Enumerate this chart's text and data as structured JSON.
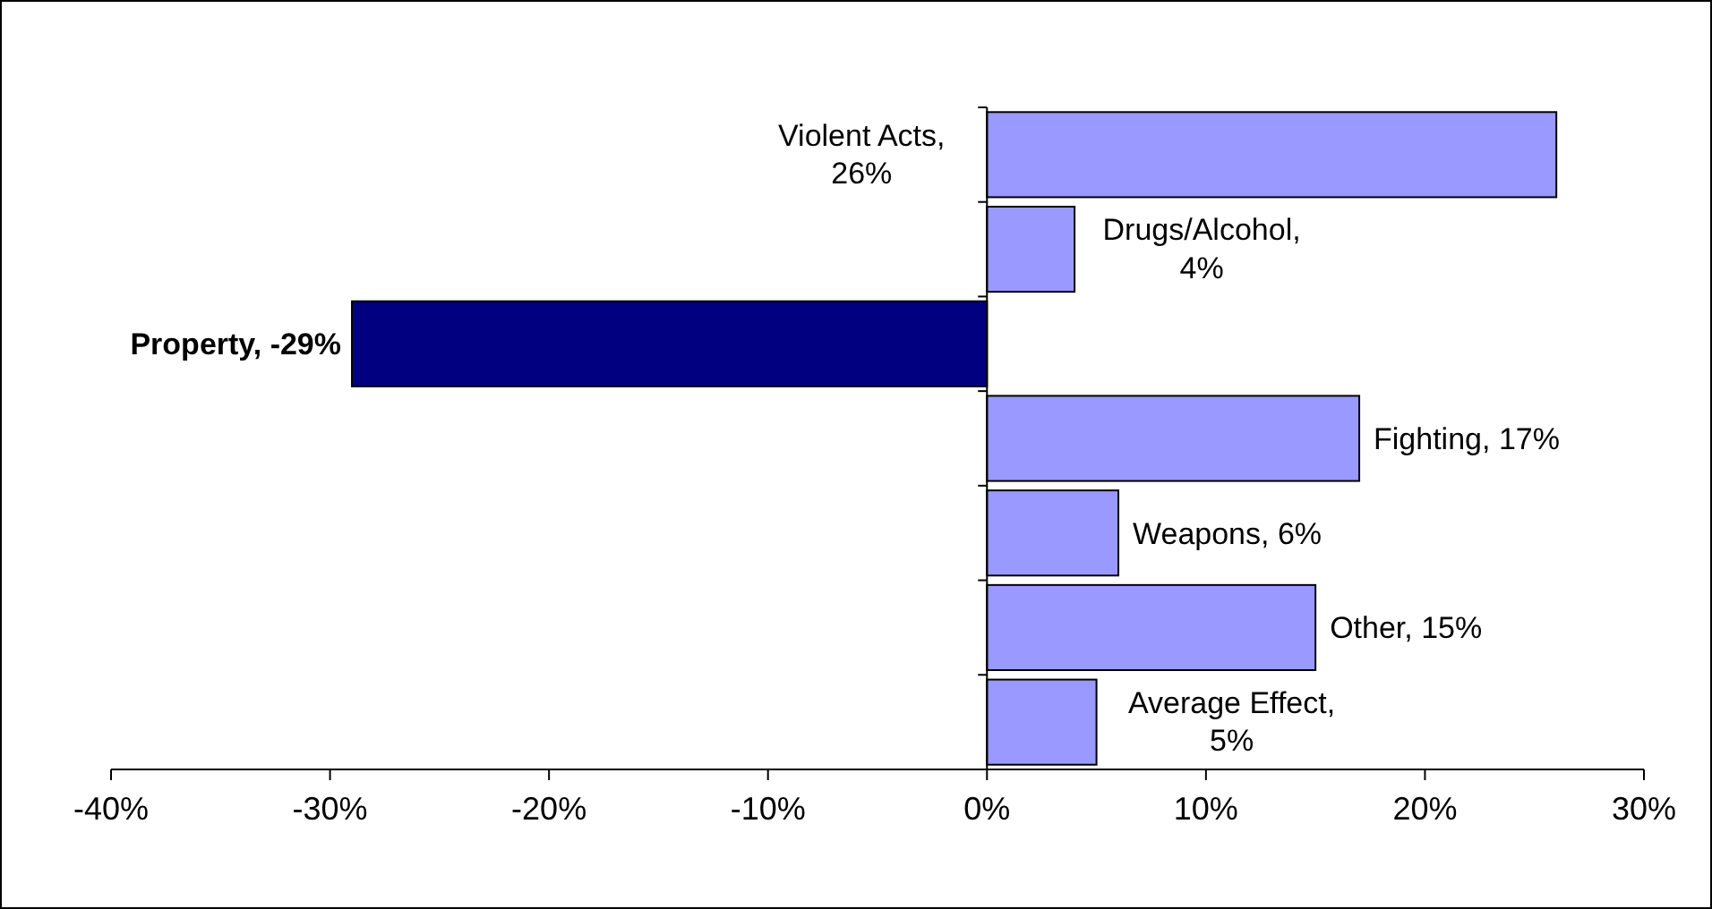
{
  "chart_data": {
    "type": "bar",
    "orientation": "horizontal",
    "categories": [
      null,
      null,
      null,
      null,
      null,
      null,
      null
    ],
    "values": [
      26,
      4,
      -29,
      17,
      6,
      15,
      5
    ],
    "colors": [
      "#9999ff",
      "#9999ff",
      "#000080",
      "#9999ff",
      "#9999ff",
      "#9999ff",
      "#9999ff"
    ],
    "value_labels": [
      "Violent Acts, 26%",
      "Drugs/Alcohol, 4%",
      "Property, -29%",
      "Fighting, 17%",
      "Weapons, 6%",
      "Other, 15%",
      "Average Effect, 5%"
    ],
    "xlim": [
      -40,
      30
    ],
    "xticks": [
      {
        "value": -40,
        "label": "-40%"
      },
      {
        "value": -30,
        "label": "-30%"
      },
      {
        "value": -20,
        "label": "-20%"
      },
      {
        "value": -10,
        "label": "-10%"
      },
      {
        "value": 0,
        "label": "0%"
      },
      {
        "value": 10,
        "label": "10%"
      },
      {
        "value": 20,
        "label": "20%"
      },
      {
        "value": 30,
        "label": "30%"
      }
    ],
    "tick_labels": "x"
  }
}
